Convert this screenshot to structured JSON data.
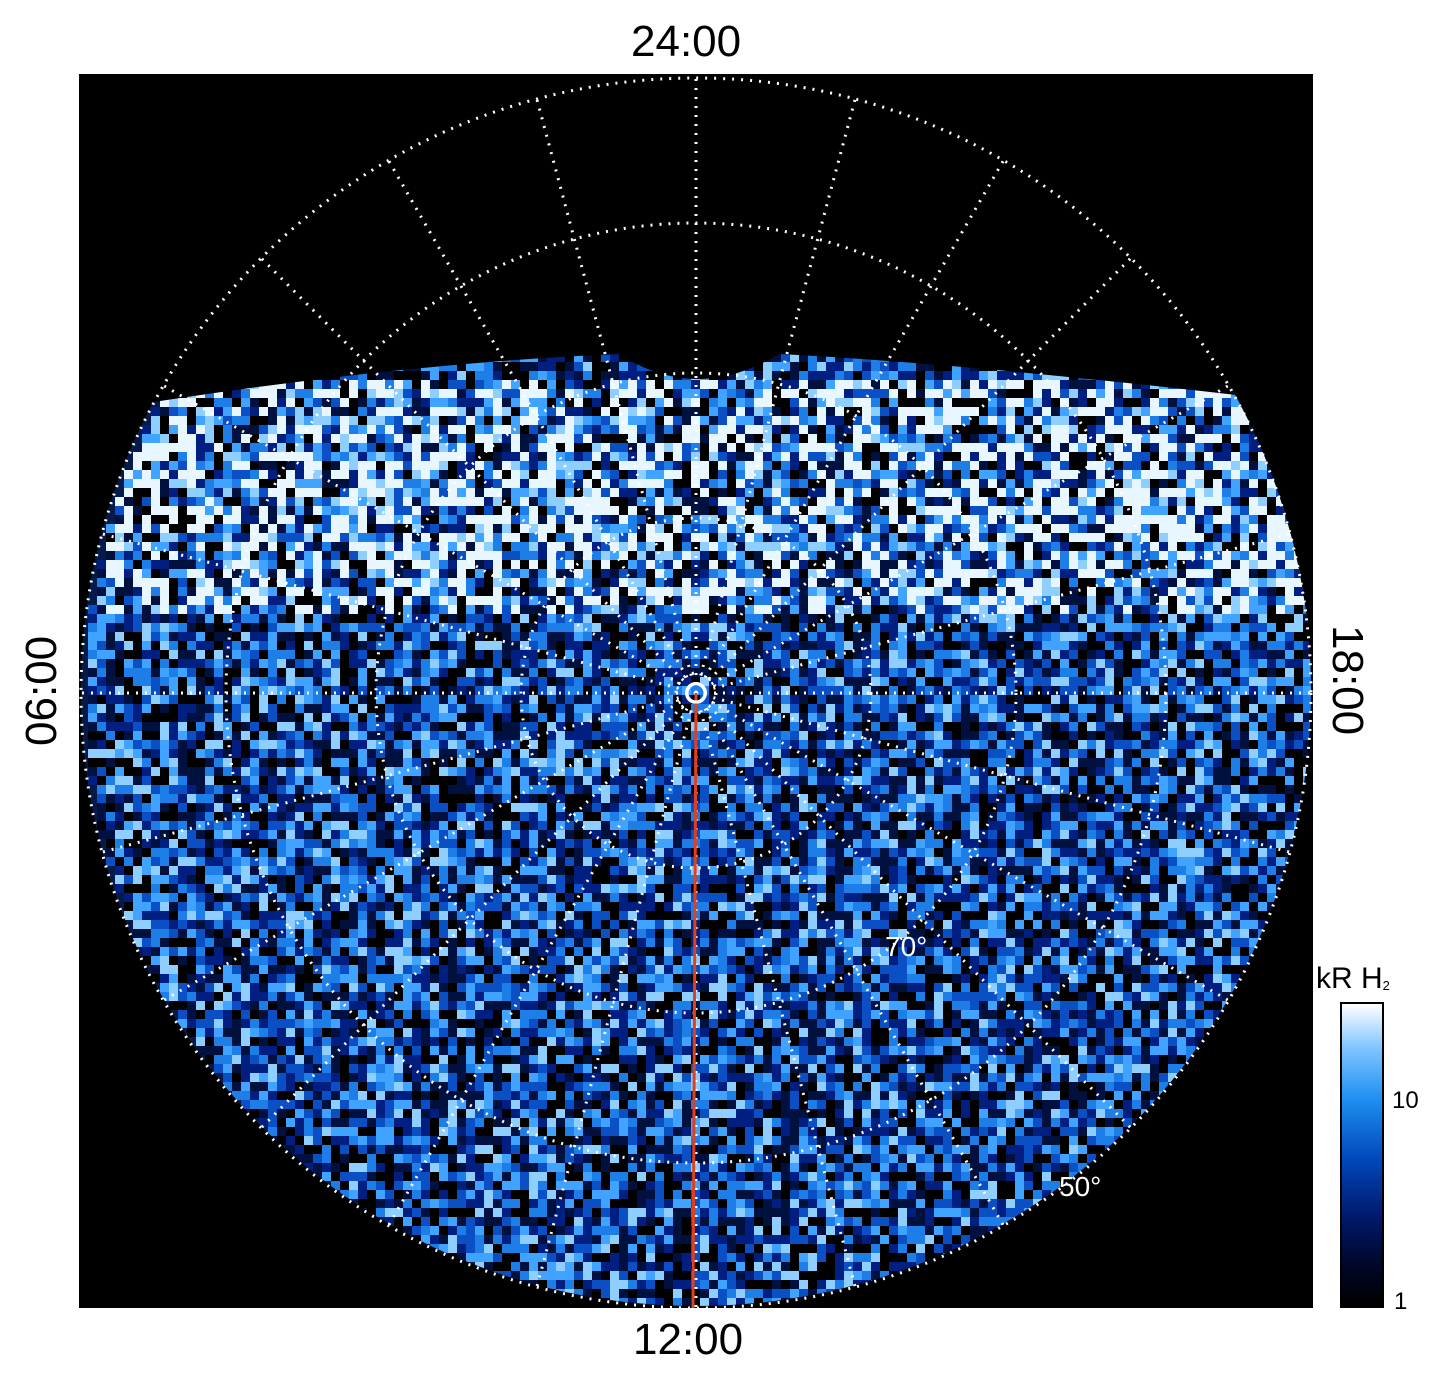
{
  "labels": {
    "top": "24:00",
    "bottom": "12:00",
    "left": "06:00",
    "right": "18:00"
  },
  "annotations": {
    "lat_70": "70°",
    "lat_50": "50°"
  },
  "colorbar": {
    "title": "kR H",
    "subscript": "2",
    "ticks": [
      "10",
      "1"
    ],
    "scale": "log",
    "colors": [
      "#000000",
      "#001a6e",
      "#0046b8",
      "#1d8ef0",
      "#7cc4ff",
      "#ffffff"
    ]
  },
  "colors": {
    "background": "#000000",
    "grid": "#ffffff",
    "meridian_line": "#e0401c"
  }
}
